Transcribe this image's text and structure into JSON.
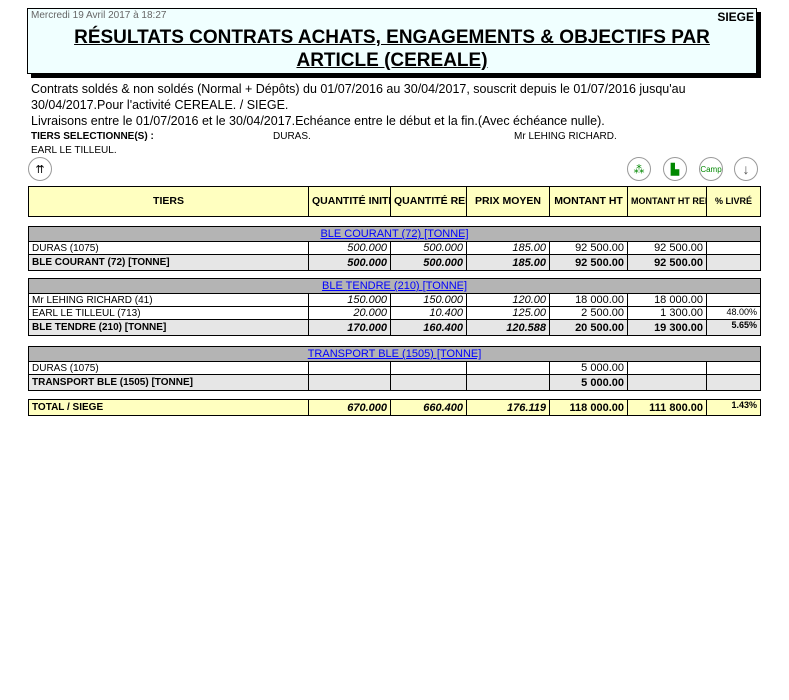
{
  "header": {
    "date": "Mercredi 19 Avril 2017 à 18:27",
    "site": "SIEGE",
    "title_line1": "RÉSULTATS CONTRATS ACHATS, ENGAGEMENTS & OBJECTIFS PAR",
    "title_line2": "ARTICLE (CEREALE)"
  },
  "description": {
    "line1": "Contrats soldés & non soldés (Normal + Dépôts) du 01/07/2016 au 30/04/2017, souscrit depuis le 01/07/2016 jusqu'au 30/04/2017.Pour l'activité CEREALE. / SIEGE.",
    "line2": "Livraisons entre le 01/07/2016 et le 30/04/2017.Echéance entre le début et la fin.(Avec échéance nulle)."
  },
  "tiers_selection": {
    "label": "TIERS SELECTIONNE(S) :",
    "values": [
      "DURAS.",
      "Mr LEHING RICHARD.",
      "EARL LE TILLEUL."
    ]
  },
  "icons": {
    "collapse": "double-up-arrow-icon",
    "tree": "tree-icon",
    "factory": "factory-icon",
    "camp": "Camp",
    "down": "down-arrow-icon"
  },
  "columns": [
    "TIERS",
    "QUANTITÉ INITIALE",
    "QUANTITÉ RELIQUAT",
    "PRIX MOYEN",
    "MONTANT HT",
    "MONTANT HT RELIQUAT",
    "% LIVRÉ"
  ],
  "sections": [
    {
      "title": "BLE COURANT (72) [TONNE]",
      "rows": [
        [
          "DURAS (1075)",
          "500.000",
          "500.000",
          "185.00",
          "92 500.00",
          "92 500.00",
          ""
        ]
      ],
      "subtotal": [
        "BLE COURANT (72) [TONNE]",
        "500.000",
        "500.000",
        "185.00",
        "92 500.00",
        "92 500.00",
        ""
      ]
    },
    {
      "title": "BLE TENDRE (210) [TONNE]",
      "rows": [
        [
          "Mr LEHING RICHARD (41)",
          "150.000",
          "150.000",
          "120.00",
          "18 000.00",
          "18 000.00",
          ""
        ],
        [
          "EARL LE TILLEUL (713)",
          "20.000",
          "10.400",
          "125.00",
          "2 500.00",
          "1 300.00",
          "48.00%"
        ]
      ],
      "subtotal": [
        "BLE TENDRE (210) [TONNE]",
        "170.000",
        "160.400",
        "120.588",
        "20 500.00",
        "19 300.00",
        "5.65%"
      ]
    },
    {
      "title": "TRANSPORT BLE (1505) [TONNE]",
      "rows": [
        [
          "DURAS (1075)",
          "",
          "",
          "",
          "5 000.00",
          "",
          ""
        ]
      ],
      "subtotal": [
        "TRANSPORT BLE (1505) [TONNE]",
        "",
        "",
        "",
        "5 000.00",
        "",
        ""
      ]
    }
  ],
  "total": [
    "TOTAL / SIEGE",
    "670.000",
    "660.400",
    "176.119",
    "118 000.00",
    "111 800.00",
    "1.43%"
  ]
}
